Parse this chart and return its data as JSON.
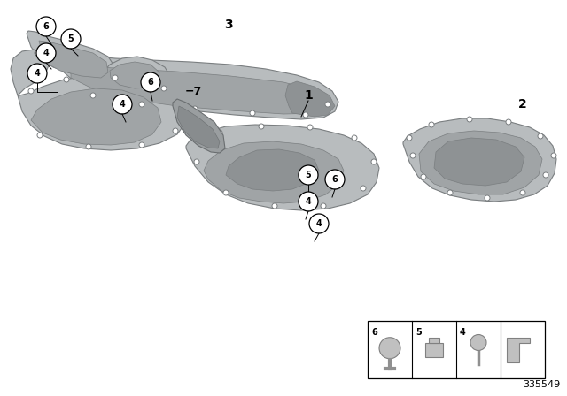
{
  "background_color": "#ffffff",
  "part_number": "335549",
  "fig_width": 6.4,
  "fig_height": 4.48,
  "panel_fill": "#b8bcbe",
  "panel_edge": "#7a7e80",
  "panel_detail": "#a0a4a6",
  "panel_shadow": "#8e9294",
  "dark_part_fill": "#9a9ea0",
  "dark_part_edge": "#6a6e70"
}
